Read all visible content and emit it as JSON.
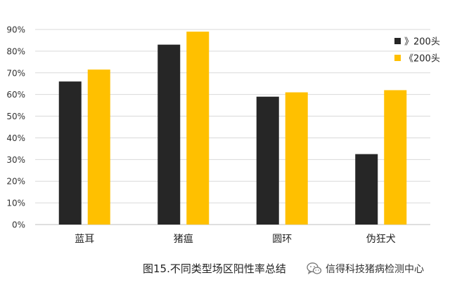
{
  "chart_data": {
    "type": "bar",
    "title": "",
    "xlabel": "",
    "ylabel": "",
    "categories": [
      "蓝耳",
      "猪瘟",
      "圆环",
      "伪狂犬"
    ],
    "series": [
      {
        "name": "》200头",
        "color": "#262626",
        "values": [
          66,
          83,
          59,
          32.5
        ]
      },
      {
        "name": "《200头",
        "color": "#FFC000",
        "values": [
          71.5,
          89,
          61,
          62
        ]
      }
    ],
    "ylim": [
      0,
      90
    ],
    "yticks": [
      0,
      10,
      20,
      30,
      40,
      50,
      60,
      70,
      80,
      90
    ],
    "ytick_suffix": "%",
    "grid": true,
    "legend_position": "right"
  },
  "caption": "图15.不同类型场区阳性率总结",
  "source": {
    "text": "信得科技猪病检测中心",
    "icon": "wechat-icon"
  }
}
